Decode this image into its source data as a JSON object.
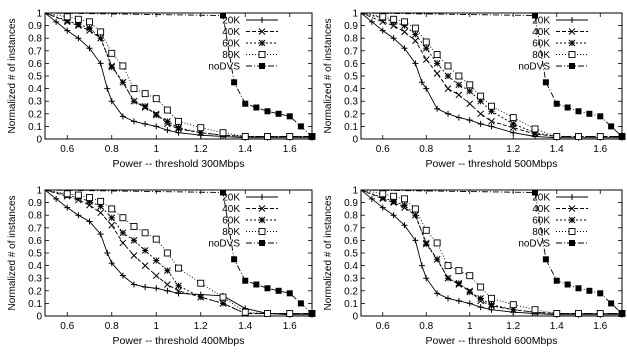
{
  "chart_data": [
    {
      "type": "line",
      "xlabel": "Power  -- threshold 300Mbps",
      "ylabel": "Normalized # of instances",
      "xlim": [
        0.5,
        1.7
      ],
      "ylim": [
        0,
        1
      ],
      "x_ticks": [
        "0.6",
        "0.8",
        "1",
        "1.2",
        "1.4",
        "1.6"
      ],
      "y_ticks": [
        "0",
        "0.1",
        "0.2",
        "0.3",
        "0.4",
        "0.5",
        "0.6",
        "0.7",
        "0.8",
        "0.9",
        "1"
      ],
      "legend_position": "top-right",
      "grid": false,
      "series": [
        {
          "name": "20K",
          "marker": "plus",
          "dash": "",
          "x": [
            0.5,
            0.55,
            0.6,
            0.65,
            0.7,
            0.75,
            0.78,
            0.8,
            0.85,
            0.9,
            0.95,
            1.0,
            1.05,
            1.1,
            1.2,
            1.3,
            1.4,
            1.5,
            1.6,
            1.7
          ],
          "y": [
            1,
            0.93,
            0.86,
            0.8,
            0.72,
            0.6,
            0.4,
            0.3,
            0.18,
            0.14,
            0.12,
            0.1,
            0.07,
            0.05,
            0.03,
            0.02,
            0.01,
            0.01,
            0.01,
            0.01
          ]
        },
        {
          "name": "40K",
          "marker": "cross",
          "dash": "4,2",
          "x": [
            0.5,
            0.6,
            0.65,
            0.7,
            0.75,
            0.8,
            0.85,
            0.9,
            0.95,
            1.0,
            1.05,
            1.1,
            1.2,
            1.3,
            1.4,
            1.5,
            1.6,
            1.7
          ],
          "y": [
            1,
            0.93,
            0.9,
            0.86,
            0.8,
            0.58,
            0.45,
            0.3,
            0.25,
            0.2,
            0.12,
            0.08,
            0.05,
            0.03,
            0.02,
            0.02,
            0.02,
            0.02
          ]
        },
        {
          "name": "60K",
          "marker": "star",
          "dash": "2,2",
          "x": [
            0.5,
            0.6,
            0.65,
            0.7,
            0.75,
            0.8,
            0.85,
            0.9,
            0.95,
            1.0,
            1.05,
            1.1,
            1.2,
            1.3,
            1.4,
            1.5,
            1.6,
            1.7
          ],
          "y": [
            1,
            0.94,
            0.91,
            0.88,
            0.8,
            0.57,
            0.45,
            0.3,
            0.26,
            0.19,
            0.14,
            0.09,
            0.05,
            0.03,
            0.02,
            0.02,
            0.02,
            0.02
          ]
        },
        {
          "name": "80K",
          "marker": "square",
          "dash": "1,2",
          "x": [
            0.5,
            0.6,
            0.65,
            0.7,
            0.75,
            0.8,
            0.85,
            0.9,
            0.95,
            1.0,
            1.05,
            1.1,
            1.2,
            1.3,
            1.4,
            1.5,
            1.6,
            1.7
          ],
          "y": [
            1,
            0.97,
            0.95,
            0.93,
            0.85,
            0.68,
            0.58,
            0.4,
            0.36,
            0.32,
            0.23,
            0.14,
            0.09,
            0.05,
            0.02,
            0.02,
            0.02,
            0.02
          ]
        },
        {
          "name": "noDVS",
          "marker": "filled-square",
          "dash": "6,2,1,2",
          "x": [
            0.5,
            1.3,
            1.35,
            1.4,
            1.45,
            1.5,
            1.55,
            1.6,
            1.65,
            1.7
          ],
          "y": [
            1,
            0.98,
            0.45,
            0.28,
            0.25,
            0.22,
            0.2,
            0.18,
            0.1,
            0.02
          ]
        }
      ]
    },
    {
      "type": "line",
      "xlabel": "Power  -- threshold 500Mbps",
      "ylabel": "Normalized # of instances",
      "xlim": [
        0.5,
        1.7
      ],
      "ylim": [
        0,
        1
      ],
      "x_ticks": [
        "0.6",
        "0.8",
        "1",
        "1.2",
        "1.4",
        "1.6"
      ],
      "y_ticks": [
        "0",
        "0.1",
        "0.2",
        "0.3",
        "0.4",
        "0.5",
        "0.6",
        "0.7",
        "0.8",
        "0.9",
        "1"
      ],
      "legend_position": "top-right",
      "grid": false,
      "series": [
        {
          "name": "20K",
          "marker": "plus",
          "dash": "",
          "x": [
            0.5,
            0.55,
            0.6,
            0.65,
            0.7,
            0.75,
            0.78,
            0.8,
            0.85,
            0.9,
            0.95,
            1.0,
            1.05,
            1.1,
            1.2,
            1.3,
            1.4,
            1.5,
            1.6,
            1.7
          ],
          "y": [
            1,
            0.93,
            0.86,
            0.8,
            0.72,
            0.6,
            0.45,
            0.4,
            0.24,
            0.2,
            0.17,
            0.15,
            0.12,
            0.1,
            0.05,
            0.02,
            0.01,
            0.01,
            0.01,
            0.01
          ]
        },
        {
          "name": "40K",
          "marker": "cross",
          "dash": "4,2",
          "x": [
            0.5,
            0.6,
            0.65,
            0.7,
            0.75,
            0.8,
            0.85,
            0.9,
            0.95,
            1.0,
            1.05,
            1.1,
            1.2,
            1.3,
            1.4,
            1.5,
            1.6,
            1.7
          ],
          "y": [
            1,
            0.93,
            0.9,
            0.85,
            0.78,
            0.63,
            0.52,
            0.4,
            0.35,
            0.28,
            0.2,
            0.14,
            0.09,
            0.04,
            0.02,
            0.02,
            0.02,
            0.02
          ]
        },
        {
          "name": "60K",
          "marker": "star",
          "dash": "2,2",
          "x": [
            0.5,
            0.6,
            0.65,
            0.7,
            0.75,
            0.8,
            0.85,
            0.9,
            0.95,
            1.0,
            1.05,
            1.1,
            1.2,
            1.3,
            1.4,
            1.5,
            1.6,
            1.7
          ],
          "y": [
            1,
            0.96,
            0.93,
            0.9,
            0.83,
            0.72,
            0.6,
            0.5,
            0.43,
            0.38,
            0.3,
            0.22,
            0.12,
            0.05,
            0.02,
            0.02,
            0.02,
            0.02
          ]
        },
        {
          "name": "80K",
          "marker": "square",
          "dash": "1,2",
          "x": [
            0.5,
            0.6,
            0.65,
            0.7,
            0.75,
            0.8,
            0.85,
            0.9,
            0.95,
            1.0,
            1.05,
            1.1,
            1.2,
            1.3,
            1.4,
            1.5,
            1.6,
            1.7
          ],
          "y": [
            1,
            0.97,
            0.95,
            0.93,
            0.88,
            0.77,
            0.67,
            0.58,
            0.5,
            0.43,
            0.34,
            0.26,
            0.17,
            0.08,
            0.02,
            0.02,
            0.02,
            0.02
          ]
        },
        {
          "name": "noDVS",
          "marker": "filled-square",
          "dash": "6,2,1,2",
          "x": [
            0.5,
            1.3,
            1.35,
            1.4,
            1.45,
            1.5,
            1.55,
            1.6,
            1.65,
            1.7
          ],
          "y": [
            1,
            0.98,
            0.45,
            0.28,
            0.25,
            0.22,
            0.2,
            0.18,
            0.1,
            0.02
          ]
        }
      ]
    },
    {
      "type": "line",
      "xlabel": "Power  -- threshold 400Mbps",
      "ylabel": "Normalized # of instances",
      "xlim": [
        0.5,
        1.7
      ],
      "ylim": [
        0,
        1
      ],
      "x_ticks": [
        "0.6",
        "0.8",
        "1",
        "1.2",
        "1.4",
        "1.6"
      ],
      "y_ticks": [
        "0",
        "0.1",
        "0.2",
        "0.3",
        "0.4",
        "0.5",
        "0.6",
        "0.7",
        "0.8",
        "0.9",
        "1"
      ],
      "legend_position": "top-right",
      "grid": false,
      "series": [
        {
          "name": "20K",
          "marker": "plus",
          "dash": "",
          "x": [
            0.5,
            0.55,
            0.6,
            0.65,
            0.7,
            0.75,
            0.78,
            0.8,
            0.85,
            0.9,
            0.95,
            1.0,
            1.05,
            1.1,
            1.2,
            1.3,
            1.4,
            1.5,
            1.6,
            1.7
          ],
          "y": [
            1,
            0.93,
            0.86,
            0.8,
            0.75,
            0.65,
            0.5,
            0.42,
            0.32,
            0.25,
            0.23,
            0.22,
            0.2,
            0.18,
            0.17,
            0.16,
            0.06,
            0.02,
            0.01,
            0.01
          ]
        },
        {
          "name": "40K",
          "marker": "cross",
          "dash": "4,2",
          "x": [
            0.5,
            0.6,
            0.65,
            0.7,
            0.75,
            0.8,
            0.85,
            0.9,
            0.95,
            1.0,
            1.05,
            1.1,
            1.2,
            1.3,
            1.4,
            1.5,
            1.6,
            1.7
          ],
          "y": [
            1,
            0.95,
            0.92,
            0.88,
            0.82,
            0.72,
            0.58,
            0.48,
            0.4,
            0.32,
            0.25,
            0.2,
            0.15,
            0.1,
            0.02,
            0.02,
            0.02,
            0.02
          ]
        },
        {
          "name": "60K",
          "marker": "star",
          "dash": "2,2",
          "x": [
            0.5,
            0.6,
            0.65,
            0.7,
            0.75,
            0.8,
            0.85,
            0.9,
            0.95,
            1.0,
            1.05,
            1.1,
            1.2,
            1.3,
            1.4,
            1.5,
            1.6,
            1.7
          ],
          "y": [
            1,
            0.96,
            0.94,
            0.91,
            0.87,
            0.78,
            0.66,
            0.6,
            0.52,
            0.44,
            0.36,
            0.24,
            0.15,
            0.1,
            0.02,
            0.02,
            0.02,
            0.02
          ]
        },
        {
          "name": "80K",
          "marker": "square",
          "dash": "1,2",
          "x": [
            0.5,
            0.6,
            0.65,
            0.7,
            0.75,
            0.8,
            0.85,
            0.9,
            0.95,
            1.0,
            1.05,
            1.1,
            1.2,
            1.3,
            1.4,
            1.5,
            1.6,
            1.7
          ],
          "y": [
            1,
            0.97,
            0.96,
            0.94,
            0.91,
            0.85,
            0.78,
            0.71,
            0.66,
            0.61,
            0.5,
            0.38,
            0.26,
            0.15,
            0.03,
            0.02,
            0.02,
            0.02
          ]
        },
        {
          "name": "noDVS",
          "marker": "filled-square",
          "dash": "6,2,1,2",
          "x": [
            0.5,
            1.3,
            1.35,
            1.4,
            1.45,
            1.5,
            1.55,
            1.6,
            1.65,
            1.7
          ],
          "y": [
            1,
            0.98,
            0.45,
            0.28,
            0.25,
            0.22,
            0.2,
            0.18,
            0.1,
            0.02
          ]
        }
      ]
    },
    {
      "type": "line",
      "xlabel": "Power  -- threshold 600Mbps",
      "ylabel": "Normalized # of instances",
      "xlim": [
        0.5,
        1.7
      ],
      "ylim": [
        0,
        1
      ],
      "x_ticks": [
        "0.6",
        "0.8",
        "1",
        "1.2",
        "1.4",
        "1.6"
      ],
      "y_ticks": [
        "0",
        "0.1",
        "0.2",
        "0.3",
        "0.4",
        "0.5",
        "0.6",
        "0.7",
        "0.8",
        "0.9",
        "1"
      ],
      "legend_position": "top-right",
      "grid": false,
      "series": [
        {
          "name": "20K",
          "marker": "plus",
          "dash": "",
          "x": [
            0.5,
            0.55,
            0.6,
            0.65,
            0.7,
            0.75,
            0.78,
            0.8,
            0.85,
            0.9,
            0.95,
            1.0,
            1.05,
            1.1,
            1.2,
            1.3,
            1.4,
            1.5,
            1.6,
            1.7
          ],
          "y": [
            1,
            0.93,
            0.86,
            0.8,
            0.72,
            0.6,
            0.4,
            0.3,
            0.18,
            0.14,
            0.12,
            0.1,
            0.07,
            0.05,
            0.03,
            0.02,
            0.01,
            0.01,
            0.01,
            0.01
          ]
        },
        {
          "name": "40K",
          "marker": "cross",
          "dash": "4,2",
          "x": [
            0.5,
            0.6,
            0.65,
            0.7,
            0.75,
            0.8,
            0.85,
            0.9,
            0.95,
            1.0,
            1.05,
            1.1,
            1.2,
            1.3,
            1.4,
            1.5,
            1.6,
            1.7
          ],
          "y": [
            1,
            0.93,
            0.9,
            0.86,
            0.8,
            0.58,
            0.45,
            0.3,
            0.25,
            0.2,
            0.12,
            0.08,
            0.05,
            0.03,
            0.02,
            0.02,
            0.02,
            0.02
          ]
        },
        {
          "name": "60K",
          "marker": "star",
          "dash": "2,2",
          "x": [
            0.5,
            0.6,
            0.65,
            0.7,
            0.75,
            0.8,
            0.85,
            0.9,
            0.95,
            1.0,
            1.05,
            1.1,
            1.2,
            1.3,
            1.4,
            1.5,
            1.6,
            1.7
          ],
          "y": [
            1,
            0.94,
            0.91,
            0.88,
            0.8,
            0.57,
            0.45,
            0.3,
            0.26,
            0.19,
            0.14,
            0.09,
            0.05,
            0.03,
            0.02,
            0.02,
            0.02,
            0.02
          ]
        },
        {
          "name": "80K",
          "marker": "square",
          "dash": "1,2",
          "x": [
            0.5,
            0.6,
            0.65,
            0.7,
            0.75,
            0.8,
            0.85,
            0.9,
            0.95,
            1.0,
            1.05,
            1.1,
            1.2,
            1.3,
            1.4,
            1.5,
            1.6,
            1.7
          ],
          "y": [
            1,
            0.97,
            0.95,
            0.93,
            0.85,
            0.68,
            0.58,
            0.4,
            0.36,
            0.32,
            0.23,
            0.14,
            0.09,
            0.05,
            0.02,
            0.02,
            0.02,
            0.02
          ]
        },
        {
          "name": "noDVS",
          "marker": "filled-square",
          "dash": "6,2,1,2",
          "x": [
            0.5,
            1.3,
            1.35,
            1.4,
            1.45,
            1.5,
            1.55,
            1.6,
            1.65,
            1.7
          ],
          "y": [
            1,
            0.98,
            0.45,
            0.28,
            0.25,
            0.22,
            0.2,
            0.18,
            0.1,
            0.02
          ]
        }
      ]
    }
  ]
}
